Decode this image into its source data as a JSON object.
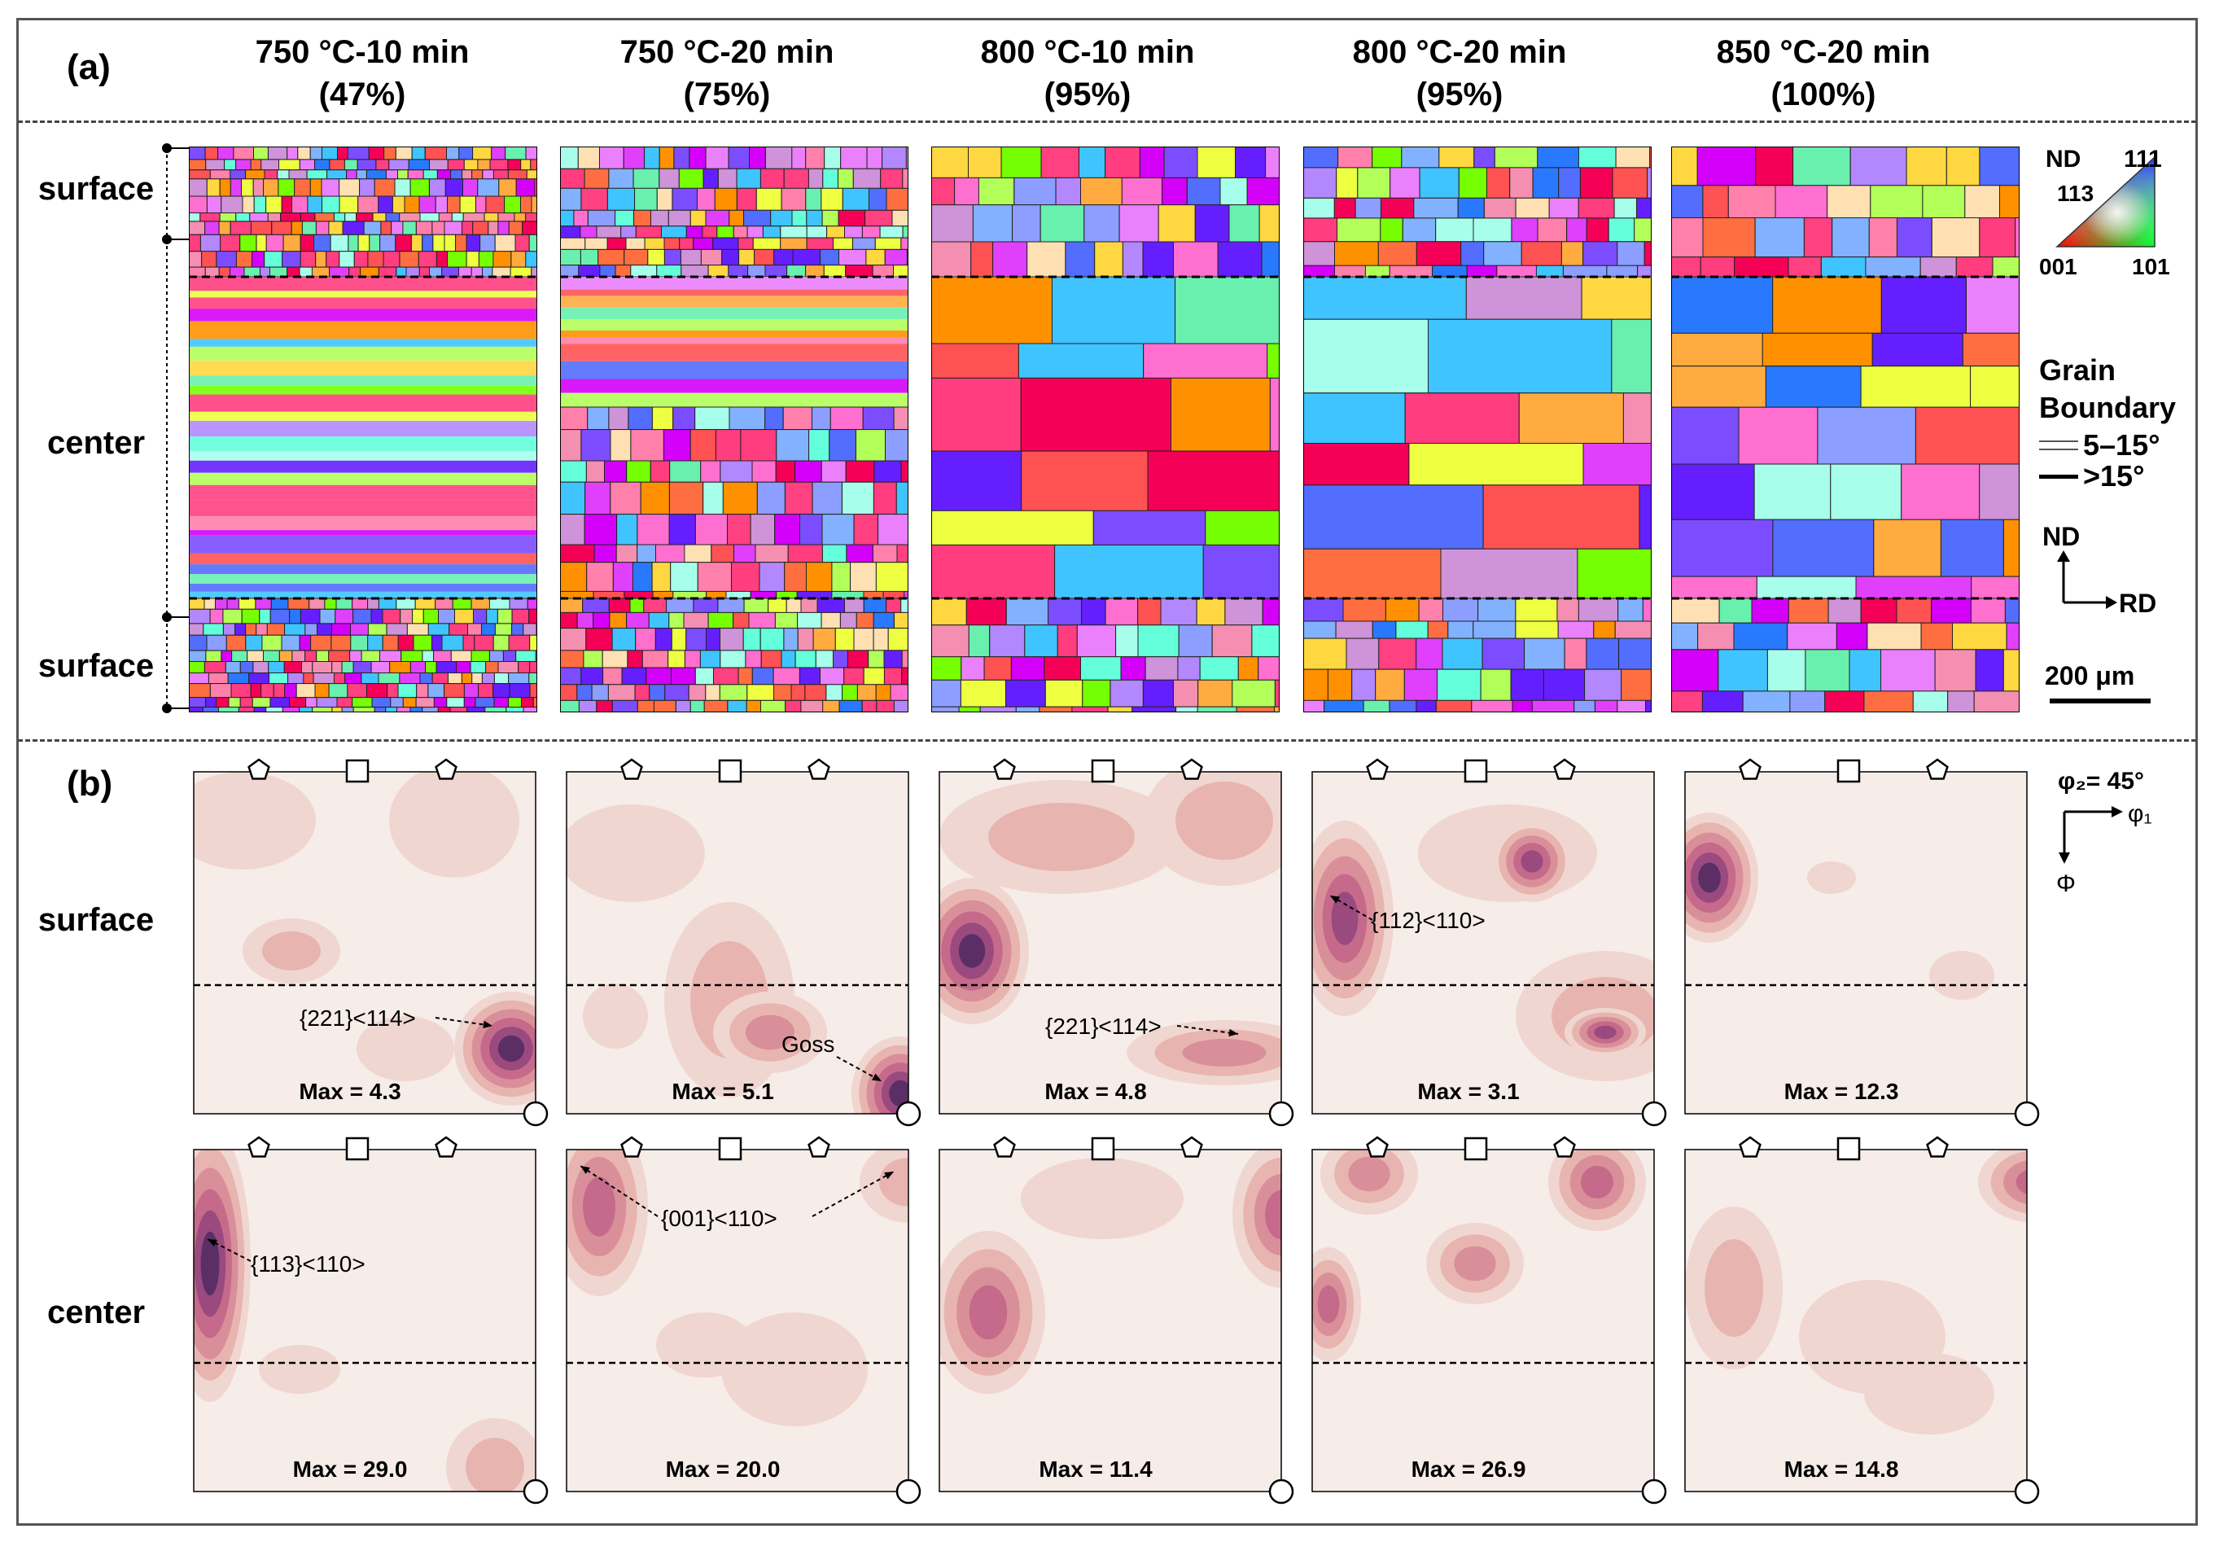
{
  "panels": {
    "a": "(a)",
    "b": "(b)"
  },
  "columns": [
    {
      "condition": "750 °C-10 min",
      "fraction": "(47%)"
    },
    {
      "condition": "750 °C-20 min",
      "fraction": "(75%)"
    },
    {
      "condition": "800 °C-10 min",
      "fraction": "(95%)"
    },
    {
      "condition": "800 °C-20 min",
      "fraction": "(95%)"
    },
    {
      "condition": "850 °C-20 min",
      "fraction": "(100%)"
    }
  ],
  "ebsd_rows": {
    "surface_top": "surface",
    "center": "center",
    "surface_bottom": "surface"
  },
  "ipf_legend": {
    "nd": "ND",
    "p111": "111",
    "p113": "113",
    "p001": "001",
    "p101": "101"
  },
  "gb_legend": {
    "title_line1": "Grain",
    "title_line2": "Boundary",
    "low": "5–15°",
    "high": ">15°"
  },
  "axes_legend": {
    "nd": "ND",
    "rd": "RD"
  },
  "scale_bar": "200 μm",
  "odf_rows": {
    "surface": "surface",
    "center": "center"
  },
  "odf_axes": {
    "phi2": "φ₂= 45°",
    "phi1": "φ₁",
    "phi": "Φ"
  },
  "odf_surface_max": [
    "Max = 4.3",
    "Max = 5.1",
    "Max = 4.8",
    "Max = 3.1",
    "Max = 12.3"
  ],
  "odf_center_max": [
    "Max = 29.0",
    "Max = 20.0",
    "Max = 11.4",
    "Max = 26.9",
    "Max = 14.8"
  ],
  "annotations": {
    "s221_114": "{221}<114>",
    "goss": "Goss",
    "s112_110": "{112}<110>",
    "s113_110": "{113}<110>",
    "s001_110": "{001}<110>"
  },
  "colors": {
    "odf_bg": "#f6ece8",
    "odf_levels": [
      "#f0d6d0",
      "#e8b4b0",
      "#d98f99",
      "#c56a8a",
      "#9a4a7e",
      "#5b2f66"
    ]
  }
}
